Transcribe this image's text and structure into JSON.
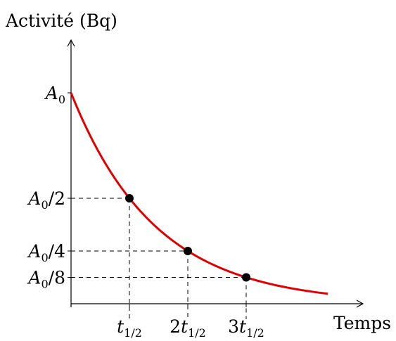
{
  "chart_data": {
    "type": "line",
    "ylabel": "Activité (Bq)",
    "xlabel": "Temps",
    "curve_color": "#e00000",
    "point_color": "#000000",
    "half_life_t": 1,
    "x": [
      0,
      1,
      2,
      3,
      4.4
    ],
    "y": [
      1,
      0.5,
      0.25,
      0.125,
      0.0474
    ],
    "xlim": [
      0,
      5
    ],
    "ylim": [
      0,
      1.3
    ],
    "marked_points": [
      {
        "x": 1,
        "y": 0.5
      },
      {
        "x": 2,
        "y": 0.25
      },
      {
        "x": 3,
        "y": 0.125
      }
    ],
    "x_ticks": [
      {
        "value": 1,
        "coef": "",
        "sym": "t",
        "sub": "1/2"
      },
      {
        "value": 2,
        "coef": "2",
        "sym": "t",
        "sub": "1/2"
      },
      {
        "value": 3,
        "coef": "3",
        "sym": "t",
        "sub": "1/2"
      }
    ],
    "y_ticks": [
      {
        "value": 1,
        "sym": "A",
        "sub": "0",
        "suffix": ""
      },
      {
        "value": 0.5,
        "sym": "A",
        "sub": "0",
        "suffix": "/2"
      },
      {
        "value": 0.25,
        "sym": "A",
        "sub": "0",
        "suffix": "/4"
      },
      {
        "value": 0.125,
        "sym": "A",
        "sub": "0",
        "suffix": "/8"
      }
    ]
  }
}
